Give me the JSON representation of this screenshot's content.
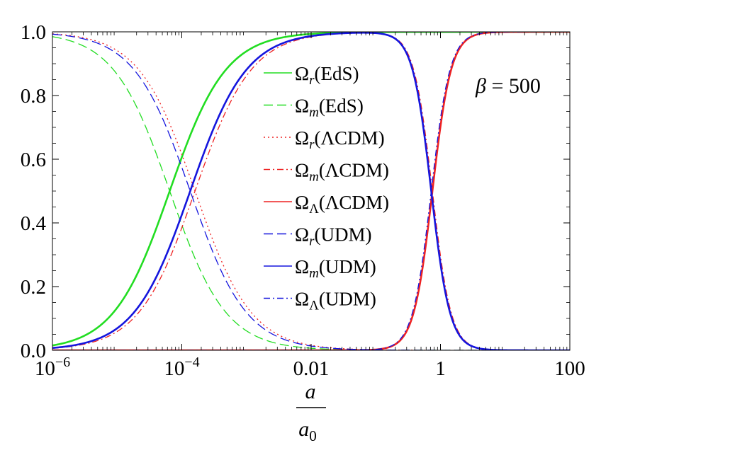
{
  "chart_data": {
    "type": "line",
    "title": "",
    "xlabel_num": "a",
    "xlabel_den": "a",
    "xlabel_den_sub": "0",
    "ylabel": "",
    "x_scale": "log",
    "xlim": [
      1e-06,
      100
    ],
    "ylim": [
      0,
      1
    ],
    "grid": false,
    "legend_position": "center-right",
    "x_ticks": [
      {
        "value": 1e-06,
        "base": "10",
        "exp": "−6"
      },
      {
        "value": 0.0001,
        "base": "10",
        "exp": "−4"
      },
      {
        "value": 0.01,
        "label": "0.01"
      },
      {
        "value": 1,
        "label": "1"
      },
      {
        "value": 100,
        "label": "100"
      }
    ],
    "y_ticks": [
      {
        "value": 0.0,
        "label": "0.0"
      },
      {
        "value": 0.2,
        "label": "0.2"
      },
      {
        "value": 0.4,
        "label": "0.4"
      },
      {
        "value": 0.6,
        "label": "0.6"
      },
      {
        "value": 0.8,
        "label": "0.8"
      },
      {
        "value": 1.0,
        "label": "1.0"
      }
    ],
    "annotation": {
      "symbol": "β",
      "text": " = 500"
    },
    "series": [
      {
        "name": "Ω_r(EdS)",
        "sym": "Ω",
        "sub": "r",
        "paren": "(EdS)",
        "color": "#22dd22",
        "dash": "solid",
        "width": 2.6,
        "type": "sig",
        "a_eq": 6.5e-05
      },
      {
        "name": "Ω_m(EdS)",
        "sym": "Ω",
        "sub": "m",
        "paren": "(EdS)",
        "color": "#22dd22",
        "dash": "dashed",
        "width": 1.3,
        "type": "isig",
        "a_eq": 6.5e-05
      },
      {
        "name": "Ω_r(ΛCDM)",
        "sym": "Ω",
        "sub": "r",
        "paren": "(ΛCDM)",
        "color": "#ee2222",
        "dash": "dotted",
        "width": 1.3,
        "type": "r3",
        "a_eq": 0.00016,
        "a_l": 0.75
      },
      {
        "name": "Ω_m(ΛCDM)",
        "sym": "Ω",
        "sub": "m",
        "paren": "(ΛCDM)",
        "color": "#ee2222",
        "dash": "dashdot",
        "width": 1.3,
        "type": "m3",
        "a_eq": 0.00016,
        "a_l": 0.75
      },
      {
        "name": "Ω_Λ(ΛCDM)",
        "sym": "Ω",
        "sub": "Λ",
        "paren": "(ΛCDM)",
        "color": "#ee2222",
        "dash": "solid",
        "width": 2.6,
        "type": "l3",
        "a_eq": 0.00016,
        "a_l": 0.75
      },
      {
        "name": "Ω_r(UDM)",
        "sym": "Ω",
        "sub": "r",
        "paren": "(UDM)",
        "color": "#1515dd",
        "dash": "dashed",
        "width": 1.3,
        "type": "r3",
        "a_eq": 0.000135,
        "a_l": 0.72
      },
      {
        "name": "Ω_m(UDM)",
        "sym": "Ω",
        "sub": "m",
        "paren": "(UDM)",
        "color": "#1515dd",
        "dash": "solid",
        "width": 2.6,
        "type": "m3",
        "a_eq": 0.000135,
        "a_l": 0.72
      },
      {
        "name": "Ω_Λ(UDM)",
        "sym": "Ω",
        "sub": "Λ",
        "paren": "(UDM)",
        "color": "#1515dd",
        "dash": "dashdot",
        "width": 1.3,
        "type": "l3",
        "a_eq": 0.000135,
        "a_l": 0.72
      }
    ]
  }
}
